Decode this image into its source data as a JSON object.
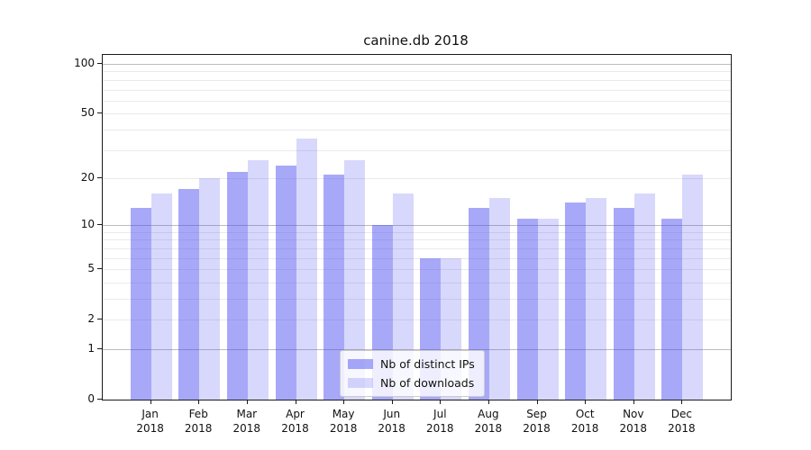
{
  "chart_data": {
    "type": "bar",
    "title": "canine.db 2018",
    "xlabel": "",
    "ylabel": "",
    "yscale": "log10(1+x)",
    "ylim": [
      0,
      113
    ],
    "grid": true,
    "legend_position": "lower center inside plot",
    "categories": [
      "Jan 2018",
      "Feb 2018",
      "Mar 2018",
      "Apr 2018",
      "May 2018",
      "Jun 2018",
      "Jul 2018",
      "Aug 2018",
      "Sep 2018",
      "Oct 2018",
      "Nov 2018",
      "Dec 2018"
    ],
    "series": [
      {
        "name": "Nb of distinct IPs",
        "color": "#4646f2",
        "alpha": 0.47,
        "values": [
          13,
          17,
          22,
          24,
          21,
          10,
          6,
          13,
          11,
          14,
          13,
          11
        ]
      },
      {
        "name": "Nb of downloads",
        "color": "#4646f2",
        "alpha": 0.21,
        "values": [
          16,
          20,
          26,
          35,
          26,
          16,
          6,
          15,
          11,
          15,
          16,
          21
        ]
      }
    ],
    "y_ticks": [
      0,
      1,
      2,
      5,
      10,
      20,
      50,
      100
    ],
    "major_gridlines": [
      1,
      10,
      100
    ],
    "minor_gridlines": [
      2,
      3,
      4,
      5,
      6,
      7,
      8,
      9,
      20,
      30,
      40,
      50,
      60,
      70,
      80,
      90
    ],
    "axis_color": "#1a1a1a",
    "major_grid_color": "#bcbcbc",
    "minor_grid_color": "#eaeaea"
  }
}
